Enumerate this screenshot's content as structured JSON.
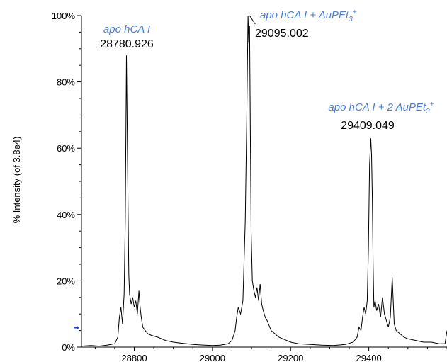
{
  "chart_data": {
    "type": "line",
    "title": "",
    "xlabel": "",
    "ylabel": "% Intensity (of 3.8e4)",
    "xlim": [
      28665,
      29600
    ],
    "ylim": [
      0,
      100
    ],
    "x_ticks": [
      28800,
      29000,
      29200,
      29400
    ],
    "y_ticks": [
      0,
      20,
      40,
      60,
      80,
      100
    ],
    "y_tick_labels": [
      "0%",
      "20%",
      "40%",
      "60%",
      "80%",
      "100%"
    ],
    "grid": false,
    "line_color": "#000000",
    "annotation_color": "#4a7fd0",
    "marker_color": "#1a3fb8",
    "series": [
      {
        "x": [
          28665,
          28690,
          28710,
          28730,
          28750,
          28758,
          28762,
          28766,
          28770,
          28774,
          28777,
          28780,
          28783,
          28786,
          28788,
          28792,
          28796,
          28800,
          28804,
          28808,
          28812,
          28815,
          28818,
          28822,
          28828,
          28835,
          28845,
          28860,
          28880,
          28900,
          28920,
          28950,
          28980,
          29000,
          29020,
          29040,
          29050,
          29058,
          29062,
          29066,
          29072,
          29078,
          29084,
          29088,
          29091,
          29093,
          29095,
          29097,
          29099,
          29102,
          29106,
          29110,
          29114,
          29118,
          29122,
          29126,
          29130,
          29135,
          29140,
          29145,
          29150,
          29160,
          29170,
          29180,
          29190,
          29200,
          29220,
          29250,
          29280,
          29310,
          29340,
          29360,
          29370,
          29375,
          29380,
          29384,
          29388,
          29392,
          29396,
          29399,
          29402,
          29405,
          29407,
          29409,
          29411,
          29413,
          29416,
          29420,
          29425,
          29430,
          29435,
          29440,
          29445,
          29450,
          29455,
          29460,
          29465,
          29470,
          29480,
          29490,
          29500,
          29520,
          29540,
          29560,
          29580,
          29595,
          29600
        ],
        "y": [
          0.3,
          0.5,
          0.3,
          0.6,
          1.0,
          3.0,
          9.0,
          12.0,
          7.0,
          16.0,
          38.0,
          88.0,
          55.0,
          22.0,
          16.0,
          13.0,
          15.0,
          12.0,
          14.0,
          10.0,
          17.0,
          12.0,
          9.0,
          6.0,
          5.0,
          4.0,
          3.5,
          3.0,
          2.0,
          1.5,
          1.2,
          0.8,
          0.6,
          0.5,
          0.6,
          1.0,
          2.0,
          5.0,
          9.0,
          12.0,
          10.0,
          14.0,
          38.0,
          70.0,
          100.0,
          92.0,
          97.0,
          65.0,
          35.0,
          20.0,
          17.0,
          15.0,
          18.0,
          14.0,
          19.0,
          13.0,
          11.0,
          9.0,
          8.0,
          6.5,
          5.0,
          4.0,
          3.0,
          2.5,
          2.0,
          1.5,
          1.0,
          0.8,
          0.6,
          0.5,
          0.8,
          1.5,
          3.0,
          6.0,
          5.0,
          9.0,
          12.0,
          10.0,
          14.0,
          30.0,
          55.0,
          63.0,
          58.0,
          45.0,
          25.0,
          12.0,
          14.0,
          11.0,
          13.0,
          9.0,
          15.0,
          10.0,
          8.0,
          6.0,
          9.0,
          21.0,
          7.0,
          5.0,
          4.0,
          3.0,
          2.5,
          2.0,
          1.5,
          1.5,
          1.0,
          1.0,
          5.0
        ]
      }
    ],
    "annotations": [
      {
        "x": 28780.926,
        "y": 88,
        "mass": "28780.926",
        "name_main": "apo hCA I",
        "name_sub": "",
        "name_sup": ""
      },
      {
        "x": 29095.002,
        "y": 100,
        "mass": "29095.002",
        "name_main": "apo hCA I + AuPEt",
        "name_sub": "3",
        "name_sup": "+"
      },
      {
        "x": 29409.049,
        "y": 63,
        "mass": "29409.049",
        "name_main": "apo hCA I + 2 AuPEt",
        "name_sub": "3",
        "name_sup": "+"
      }
    ]
  }
}
